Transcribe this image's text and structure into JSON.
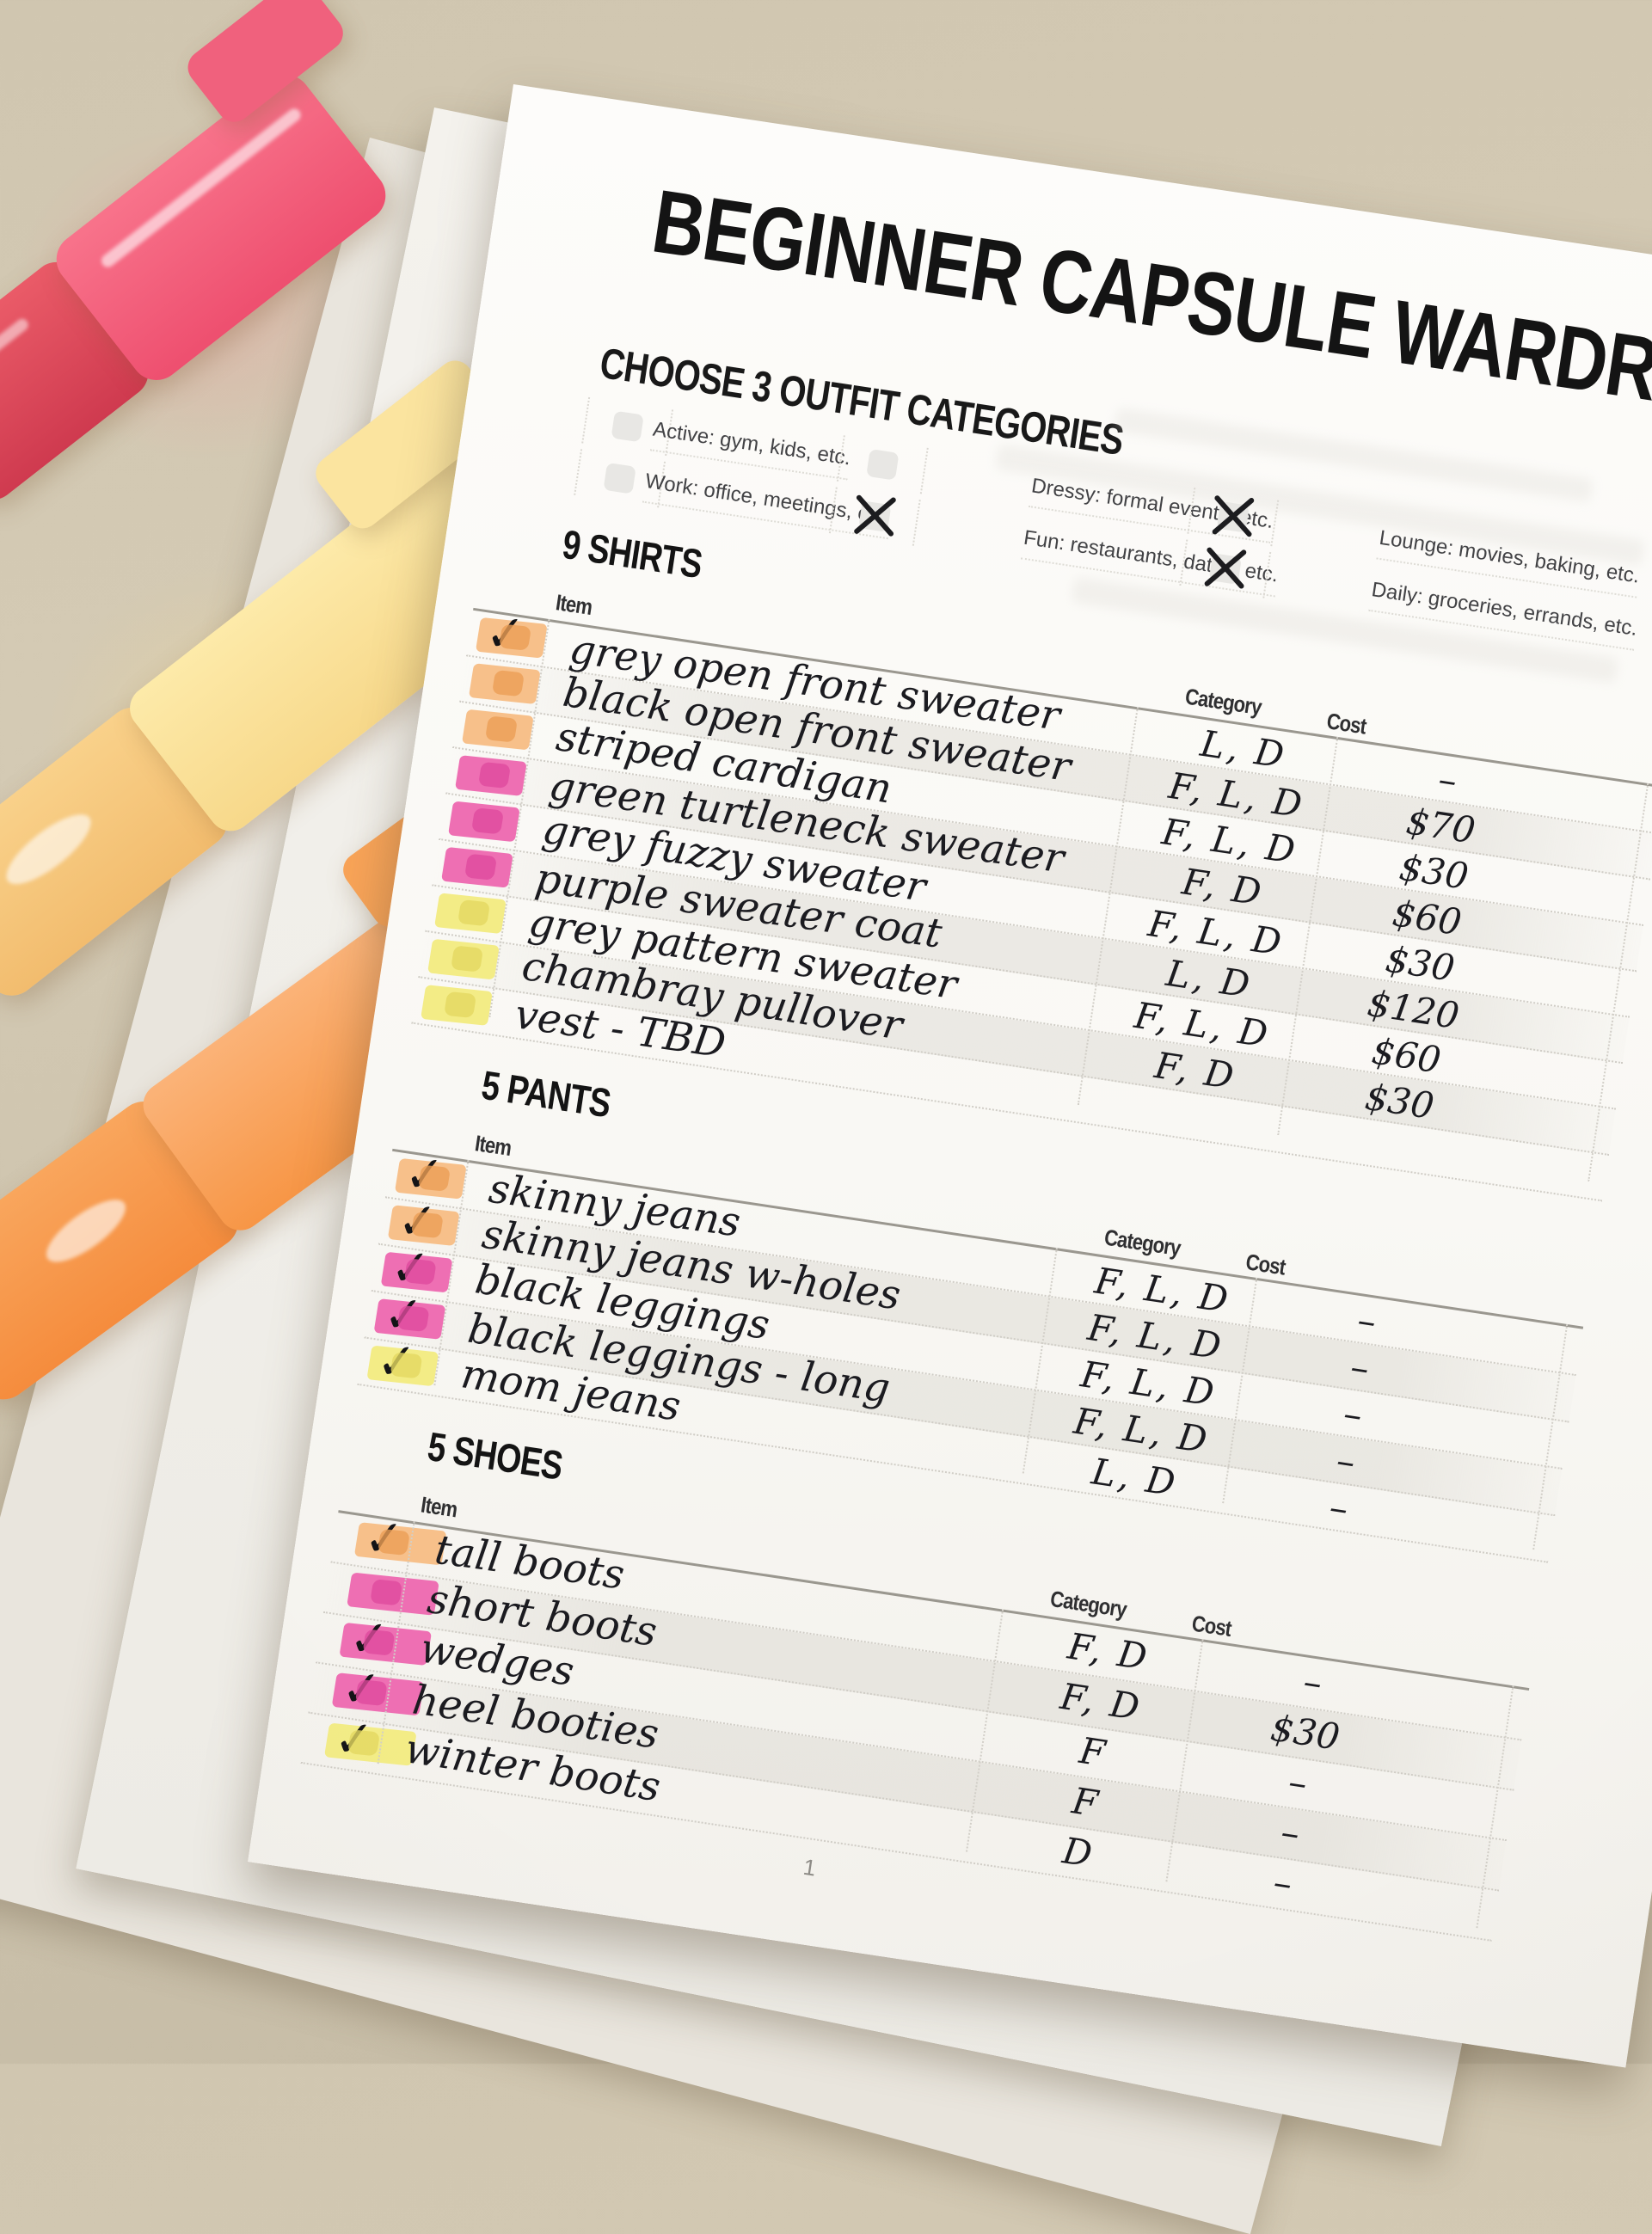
{
  "title": "BEGINNER CAPSULE WARDROBE",
  "subtitle": "CHOOSE 3 OUTFIT CATEGORIES",
  "page": {
    "number_label": "1"
  },
  "categories": [
    {
      "label": "Active: gym, kids, etc.",
      "checked": false
    },
    {
      "label": "Work: office, meetings, etc.",
      "checked": false
    },
    {
      "label": "Dressy: formal events, etc.",
      "checked": false
    },
    {
      "label": "Fun: restaurants, dates, etc.",
      "checked": true
    },
    {
      "label": "Lounge: movies, baking, etc.",
      "checked": true
    },
    {
      "label": "Daily: groceries, errands, etc.",
      "checked": true
    }
  ],
  "table_headers": {
    "item": "Item",
    "category": "Category",
    "cost": "Cost"
  },
  "sections": [
    {
      "heading": "9 SHIRTS",
      "rows": [
        {
          "item": "grey open front sweater",
          "category": "L, D",
          "cost": "–",
          "checked": true,
          "highlight": "orange"
        },
        {
          "item": "black open front sweater",
          "category": "F, L, D",
          "cost": "$70",
          "checked": false,
          "highlight": "orange"
        },
        {
          "item": "striped cardigan",
          "category": "F, L, D",
          "cost": "$30",
          "checked": false,
          "highlight": "orange"
        },
        {
          "item": "green turtleneck sweater",
          "category": "F, D",
          "cost": "$60",
          "checked": false,
          "highlight": "pink"
        },
        {
          "item": "grey fuzzy sweater",
          "category": "F, L, D",
          "cost": "$30",
          "checked": false,
          "highlight": "pink"
        },
        {
          "item": "purple sweater coat",
          "category": "L, D",
          "cost": "$120",
          "checked": false,
          "highlight": "pink"
        },
        {
          "item": "grey pattern sweater",
          "category": "F, L, D",
          "cost": "$60",
          "checked": false,
          "highlight": "yellow"
        },
        {
          "item": "chambray pullover",
          "category": "F, D",
          "cost": "$30",
          "checked": false,
          "highlight": "yellow"
        },
        {
          "item": "vest - TBD",
          "category": "",
          "cost": "",
          "checked": false,
          "highlight": "yellow"
        }
      ]
    },
    {
      "heading": "5 PANTS",
      "rows": [
        {
          "item": "skinny jeans",
          "category": "F, L, D",
          "cost": "–",
          "checked": true,
          "highlight": "orange"
        },
        {
          "item": "skinny jeans w-holes",
          "category": "F, L, D",
          "cost": "–",
          "checked": true,
          "highlight": "orange"
        },
        {
          "item": "black leggings",
          "category": "F, L, D",
          "cost": "–",
          "checked": true,
          "highlight": "pink"
        },
        {
          "item": "black leggings - long",
          "category": "F, L, D",
          "cost": "–",
          "checked": true,
          "highlight": "pink"
        },
        {
          "item": "mom jeans",
          "category": "L, D",
          "cost": "–",
          "checked": true,
          "highlight": "yellow"
        }
      ]
    },
    {
      "heading": "5 SHOES",
      "rows": [
        {
          "item": "tall boots",
          "category": "F, D",
          "cost": "–",
          "checked": true,
          "highlight": "orange"
        },
        {
          "item": "short boots",
          "category": "F, D",
          "cost": "$30",
          "checked": false,
          "highlight": "pink"
        },
        {
          "item": "wedges",
          "category": "F",
          "cost": "–",
          "checked": true,
          "highlight": "pink"
        },
        {
          "item": "heel booties",
          "category": "F",
          "cost": "–",
          "checked": true,
          "highlight": "pink"
        },
        {
          "item": "winter boots",
          "category": "D",
          "cost": "–",
          "checked": true,
          "highlight": "yellow"
        }
      ]
    }
  ],
  "icons": {
    "checkmark": "✓",
    "x_mark": "✕"
  },
  "colors": {
    "highlight_orange": "#f7c08a",
    "highlight_pink": "#ee6fb3",
    "highlight_yellow": "#f3ec86",
    "marker_pink": "#f2566f",
    "marker_yellow": "#fbdf97",
    "marker_orange": "#f9a054",
    "desk": "#cdc3ac",
    "paper": "#fbfaf7",
    "ink": "#1b1b20"
  },
  "scene": {
    "objects": [
      "pink highlighter",
      "yellow highlighter",
      "orange highlighter",
      "stack of paper sheets"
    ],
    "surface": "beige desk"
  }
}
